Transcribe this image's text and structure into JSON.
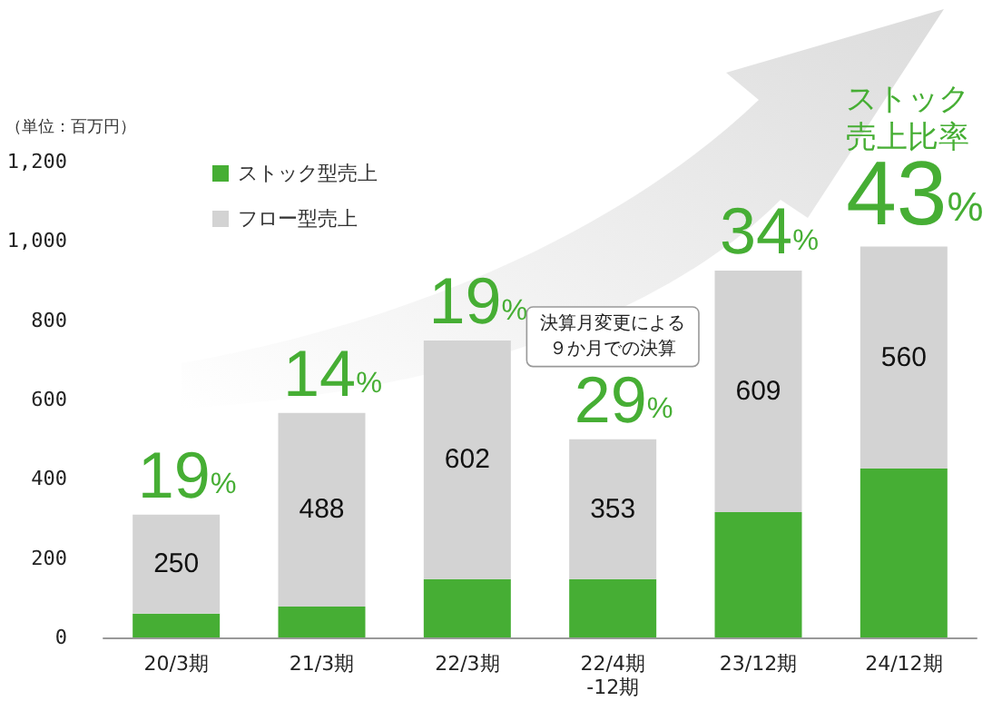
{
  "chart_data": {
    "type": "bar",
    "stacked": true,
    "ylabel": "（単位：百万円）",
    "categories": [
      "20/3期",
      "21/3期",
      "22/3期",
      "22/4期\n-12期",
      "23/12期",
      "24/12期"
    ],
    "series": [
      {
        "name": "ストック型売上",
        "color": "#46ae34",
        "values": [
          60,
          78,
          147,
          147,
          316,
          426
        ]
      },
      {
        "name": "フロー型売上",
        "color": "#d3d3d3",
        "values": [
          250,
          488,
          602,
          353,
          609,
          560
        ],
        "value_labels": [
          "250",
          "488",
          "602",
          "353",
          "609",
          "560"
        ]
      }
    ],
    "ylim": [
      0,
      1200
    ],
    "yticks": [
      0,
      200,
      400,
      600,
      800,
      {
        "value": 1000,
        "label": "1,000"
      },
      {
        "value": 1200,
        "label": "1,200"
      }
    ],
    "grid": false,
    "legend": "top left",
    "annotations": [
      "19%",
      "14%",
      "19%",
      "決算月変更による９か月での決算",
      "29%",
      "34%",
      "ストック売上比率",
      "43%"
    ]
  }
}
